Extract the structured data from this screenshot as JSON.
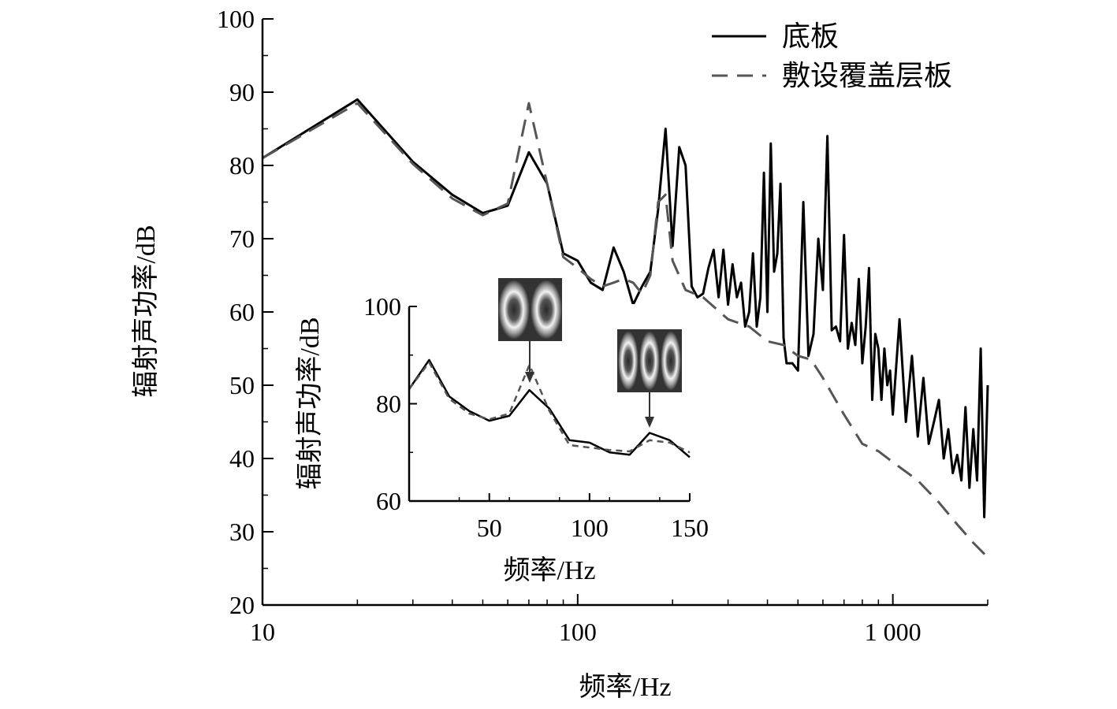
{
  "chart_data": [
    {
      "type": "line",
      "xlabel": "频率/Hz",
      "ylabel": "辐射声功率/dB",
      "xscale": "log",
      "xlim": [
        10,
        2000
      ],
      "ylim": [
        20,
        100
      ],
      "xticks": [
        10,
        100,
        1000
      ],
      "xtick_labels": [
        "10",
        "100",
        "1 000"
      ],
      "yticks": [
        20,
        30,
        40,
        50,
        60,
        70,
        80,
        90,
        100
      ],
      "ytick_labels": [
        "20",
        "30",
        "40",
        "50",
        "60",
        "70",
        "80",
        "90",
        "100"
      ],
      "grid": false,
      "legend": "top-right",
      "series": [
        {
          "name": "底板",
          "style": "solid",
          "color": "#000000",
          "x": [
            10,
            20,
            30,
            40,
            50,
            60,
            70,
            80,
            90,
            100,
            110,
            120,
            130,
            140,
            150,
            160,
            170,
            180,
            190,
            200,
            210,
            220,
            230,
            240,
            250,
            260,
            270,
            280,
            290,
            300,
            310,
            320,
            330,
            340,
            350,
            360,
            370,
            380,
            390,
            400,
            410,
            420,
            430,
            440,
            450,
            460,
            480,
            500,
            520,
            540,
            560,
            580,
            600,
            620,
            640,
            660,
            680,
            700,
            720,
            740,
            760,
            780,
            800,
            820,
            840,
            860,
            880,
            900,
            920,
            940,
            960,
            980,
            1000,
            1050,
            1100,
            1150,
            1200,
            1250,
            1300,
            1350,
            1400,
            1450,
            1500,
            1550,
            1600,
            1650,
            1700,
            1750,
            1800,
            1850,
            1900,
            1950,
            2000
          ],
          "y": [
            81,
            89,
            80.5,
            76,
            73.5,
            74.5,
            81.8,
            77.5,
            68,
            67,
            64,
            63,
            68.8,
            65.5,
            61,
            63.5,
            65.5,
            74,
            85,
            69,
            82.5,
            80,
            63.5,
            62,
            62.5,
            66,
            68.5,
            62,
            68.5,
            61,
            66.5,
            62,
            64,
            58,
            60,
            68,
            58,
            62,
            79,
            60,
            83,
            65.5,
            68,
            77.5,
            56.5,
            53,
            53,
            52,
            75,
            54,
            57,
            70,
            63,
            84,
            57.5,
            58,
            56,
            70.5,
            55,
            58.5,
            55.5,
            64.5,
            53,
            58,
            66,
            48,
            57,
            55,
            48,
            55,
            50,
            52,
            46,
            59,
            45,
            54,
            43,
            51,
            42,
            45,
            48,
            40,
            44,
            38,
            40.5,
            37,
            47,
            36,
            44,
            37,
            55,
            32,
            50
          ]
        },
        {
          "name": "敷设覆盖层板",
          "style": "dashed",
          "color": "#555555",
          "x": [
            10,
            20,
            30,
            40,
            50,
            60,
            70,
            80,
            90,
            100,
            110,
            120,
            130,
            140,
            150,
            160,
            170,
            180,
            190,
            200,
            220,
            250,
            300,
            350,
            400,
            450,
            500,
            550,
            600,
            700,
            800,
            900,
            1000,
            1200,
            1400,
            1600,
            1800,
            2000
          ],
          "y": [
            81,
            88.5,
            80.2,
            75.5,
            73.2,
            74.8,
            88.5,
            77.5,
            67.5,
            66,
            64.5,
            63.5,
            64,
            64.5,
            64,
            62.5,
            65,
            75,
            76,
            67,
            63,
            62,
            59,
            58,
            56,
            55.5,
            54,
            53.5,
            51,
            46,
            42,
            41,
            39.5,
            37,
            34,
            31,
            28.5,
            26.5
          ]
        }
      ]
    },
    {
      "type": "line",
      "inset": true,
      "xlabel": "频率/Hz",
      "ylabel": "辐射声功率/dB",
      "xlim": [
        10,
        150
      ],
      "ylim": [
        60,
        100
      ],
      "xticks": [
        50,
        100,
        150
      ],
      "xtick_labels": [
        "50",
        "100",
        "150"
      ],
      "yticks": [
        60,
        80,
        100
      ],
      "ytick_labels": [
        "60",
        "80",
        "100"
      ],
      "grid": false,
      "series": [
        {
          "name": "底板",
          "style": "solid",
          "color": "#000000",
          "x": [
            10,
            20,
            30,
            40,
            50,
            60,
            70,
            80,
            90,
            100,
            110,
            120,
            130,
            140,
            150
          ],
          "y": [
            83,
            89,
            81.5,
            78.5,
            76.5,
            77.5,
            82.8,
            79,
            72.5,
            72,
            70,
            69.5,
            74,
            72.5,
            69
          ]
        },
        {
          "name": "敷设覆盖层板",
          "style": "dashed",
          "color": "#555555",
          "x": [
            10,
            20,
            30,
            40,
            50,
            60,
            70,
            80,
            90,
            100,
            110,
            120,
            130,
            140,
            150
          ],
          "y": [
            83,
            88.5,
            81,
            78,
            76.8,
            78,
            88,
            78.5,
            71.5,
            71,
            70.5,
            70.2,
            72.5,
            72,
            70
          ]
        }
      ]
    }
  ]
}
